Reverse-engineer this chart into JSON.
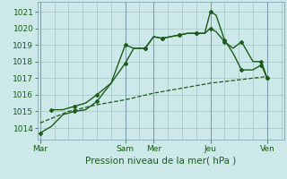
{
  "title": "",
  "xlabel": "Pression niveau de la mer( hPa )",
  "bg_color": "#cce8e8",
  "grid_color": "#99bbbb",
  "line_color": "#1a5c1a",
  "xtick_labels": [
    "Mar",
    "",
    "",
    "Sam",
    "Mer",
    "",
    "Jeu",
    "",
    "Ven"
  ],
  "xtick_positions": [
    0,
    1,
    2,
    3,
    4,
    5,
    6,
    7,
    8
  ],
  "xtick_major_labels": [
    "Mar",
    "Sam",
    "Mer",
    "Jeu",
    "Ven"
  ],
  "xtick_major_positions": [
    0,
    3,
    4,
    6,
    8
  ],
  "ylim": [
    1013.3,
    1021.6
  ],
  "xlim": [
    -0.1,
    8.6
  ],
  "yticks": [
    1014,
    1015,
    1016,
    1017,
    1018,
    1019,
    1020,
    1021
  ],
  "series": [
    {
      "x": [
        0,
        0.4,
        0.8,
        1.2,
        1.6,
        2.0,
        2.5,
        3.0,
        3.3,
        3.7,
        4.0,
        4.3,
        4.6,
        4.9,
        5.2,
        5.5,
        5.8,
        6.0,
        6.2,
        6.5,
        6.8,
        7.1,
        7.5,
        7.8,
        8.0
      ],
      "y": [
        1013.7,
        1014.1,
        1014.8,
        1015.0,
        1015.1,
        1015.6,
        1016.7,
        1019.0,
        1018.8,
        1018.8,
        1019.5,
        1019.4,
        1019.5,
        1019.6,
        1019.7,
        1019.7,
        1019.7,
        1021.0,
        1020.8,
        1019.3,
        1018.5,
        1017.5,
        1017.5,
        1017.8,
        1017.0
      ],
      "style": "-",
      "marker": "D",
      "markersize": 2.0,
      "linewidth": 1.0,
      "markevery": [
        0,
        3,
        5,
        7,
        9,
        11,
        13,
        15,
        17,
        19,
        21,
        23,
        24
      ]
    },
    {
      "x": [
        0.4,
        0.8,
        1.2,
        1.6,
        2.0,
        2.5,
        3.0,
        3.3,
        3.7,
        4.0,
        4.3,
        4.6,
        4.9,
        5.2,
        5.5,
        5.8,
        6.0,
        6.2,
        6.5,
        6.8,
        7.1,
        7.5,
        7.8,
        8.0
      ],
      "y": [
        1015.1,
        1015.1,
        1015.3,
        1015.5,
        1016.0,
        1016.7,
        1017.9,
        1018.8,
        1018.8,
        1019.5,
        1019.4,
        1019.5,
        1019.6,
        1019.7,
        1019.7,
        1019.7,
        1020.0,
        1019.8,
        1019.2,
        1018.8,
        1019.2,
        1018.0,
        1018.0,
        1017.0
      ],
      "style": "-",
      "marker": "D",
      "markersize": 2.0,
      "linewidth": 1.0,
      "markevery": [
        0,
        2,
        4,
        6,
        8,
        10,
        12,
        14,
        16,
        18,
        20,
        22,
        23
      ]
    },
    {
      "x": [
        0,
        1.0,
        2.0,
        3.0,
        4.0,
        5.0,
        6.0,
        7.0,
        8.0
      ],
      "y": [
        1014.3,
        1015.0,
        1015.4,
        1015.7,
        1016.1,
        1016.4,
        1016.7,
        1016.9,
        1017.1
      ],
      "style": "--",
      "marker": null,
      "markersize": 0,
      "linewidth": 0.9,
      "markevery": null
    }
  ],
  "vlines_x": [
    0,
    3,
    4,
    6,
    8
  ],
  "font_color": "#1a5c1a",
  "tick_fontsize": 6.5,
  "label_fontsize": 7.5
}
